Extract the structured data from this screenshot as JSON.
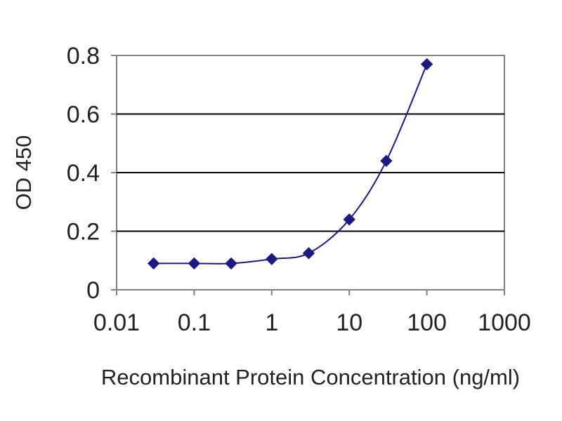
{
  "chart_data": {
    "type": "line",
    "title": "",
    "xlabel": "Recombinant Protein Concentration (ng/ml)",
    "ylabel": "OD 450",
    "x_scale": "log",
    "xlim": [
      0.01,
      1000
    ],
    "ylim": [
      0,
      0.8
    ],
    "x_ticks": [
      {
        "value": 0.01,
        "label": "0.01"
      },
      {
        "value": 0.1,
        "label": "0.1"
      },
      {
        "value": 1,
        "label": "1"
      },
      {
        "value": 10,
        "label": "10"
      },
      {
        "value": 100,
        "label": "100"
      },
      {
        "value": 1000,
        "label": "1000"
      }
    ],
    "y_ticks": [
      {
        "value": 0,
        "label": "0"
      },
      {
        "value": 0.2,
        "label": "0.2"
      },
      {
        "value": 0.4,
        "label": "0.4"
      },
      {
        "value": 0.6,
        "label": "0.6"
      },
      {
        "value": 0.8,
        "label": "0.8"
      }
    ],
    "grid": "horizontal",
    "legend": "none",
    "series": [
      {
        "color": "#1a1a80",
        "marker": "diamond",
        "x": [
          0.03,
          0.1,
          0.3,
          1,
          3,
          10,
          30,
          100
        ],
        "y": [
          0.09,
          0.09,
          0.09,
          0.105,
          0.125,
          0.24,
          0.44,
          0.77
        ]
      }
    ]
  }
}
